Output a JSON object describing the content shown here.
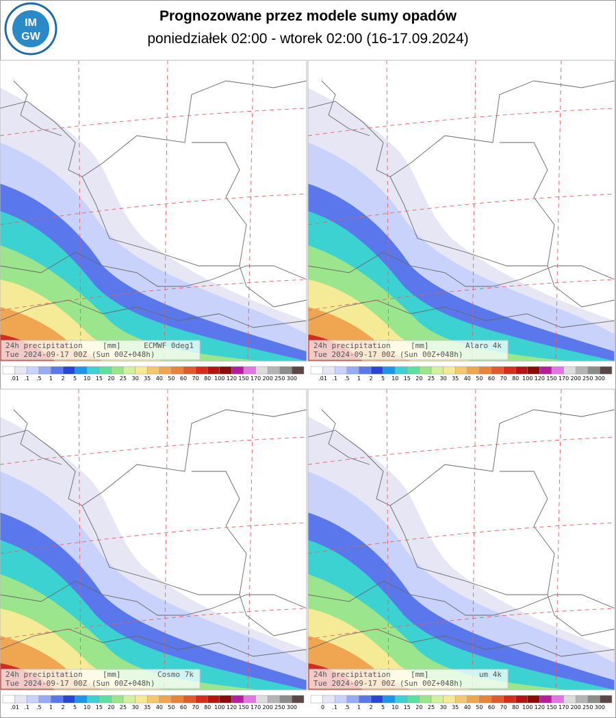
{
  "header": {
    "title": "Prognozowane przez modele sumy opadów",
    "subtitle": "poniedziałek 02:00 - wtorek 02:00 (16-17.09.2024)",
    "logo": [
      "IM",
      "GW"
    ]
  },
  "panels": [
    {
      "label": "24h precipitation",
      "units": "[mm]",
      "model": "ECMWF 0deg1",
      "valid": "Tue 2024-09-17 00Z (Sun 00Z+048h)",
      "colorbar": [
        ".01",
        ".1",
        ".5",
        "1",
        "2",
        "5",
        "10",
        "15",
        "20",
        "25",
        "30",
        "35",
        "40",
        "50",
        "60",
        "70",
        "80",
        "100",
        "120",
        "150",
        "170",
        "200",
        "250",
        "300"
      ]
    },
    {
      "label": "24h precipitation",
      "units": "[mm]",
      "model": "Alaro 4k",
      "valid": "Tue 2024-09-17 00Z (Sun 00Z+048h)",
      "colorbar": [
        ".01",
        ".1",
        ".5",
        "1",
        "2",
        "5",
        "10",
        "15",
        "20",
        "25",
        "30",
        "35",
        "40",
        "50",
        "60",
        "70",
        "80",
        "100",
        "120",
        "150",
        "170",
        "200",
        "250",
        "300"
      ]
    },
    {
      "label": "24h precipitation",
      "units": "[mm]",
      "model": "Cosmo 7k",
      "valid": "Tue 2024-09-17 00Z (Sun 00Z+048h)",
      "colorbar": [
        ".01",
        ".1",
        ".5",
        "1",
        "2",
        "5",
        "10",
        "15",
        "20",
        "25",
        "30",
        "35",
        "40",
        "50",
        "60",
        "70",
        "80",
        "100",
        "120",
        "150",
        "170",
        "200",
        "250",
        "300"
      ]
    },
    {
      "label": "24h precipitation",
      "units": "[mm]",
      "model": "um 4k",
      "valid": "Tue 2024-09-17 00Z (Sun 00Z+048h)",
      "colorbar": [
        "0",
        ".1",
        ".5",
        "1",
        "2",
        "5",
        "10",
        "15",
        "20",
        "25",
        "30",
        "35",
        "40",
        "50",
        "60",
        "70",
        "80",
        "100",
        "120",
        "150",
        "170",
        "200",
        "250",
        "300"
      ]
    }
  ],
  "colorbar_colors": [
    "#ffffff",
    "#e6e6f5",
    "#c8d2fa",
    "#96aaf5",
    "#5a78eb",
    "#2846d2",
    "#1e96e6",
    "#3cd2d2",
    "#5ae1a0",
    "#9be68c",
    "#d2f0a0",
    "#f5eb96",
    "#f5c86e",
    "#f0a550",
    "#eb823c",
    "#e15a2d",
    "#d22d1e",
    "#b41414",
    "#8c0a0a",
    "#b41e9b",
    "#e178e1",
    "#dcdcdc",
    "#b4b4b4",
    "#8c8c8c",
    "#5a4646"
  ]
}
